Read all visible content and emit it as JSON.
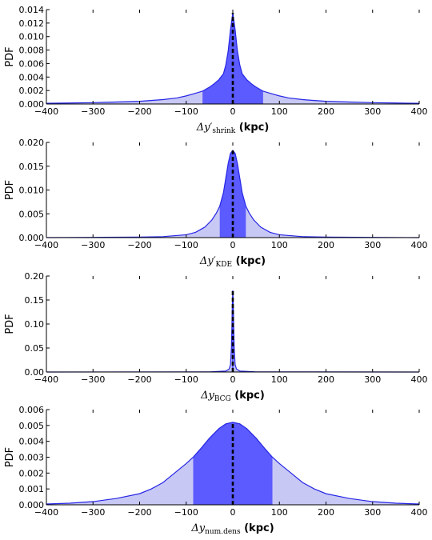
{
  "colors": {
    "fill_outer": "#c8c8f5",
    "fill_inner": "#5b5bff",
    "line": "#2626e6",
    "median": "#000000"
  },
  "chart_data": [
    {
      "type": "area",
      "ylabel": "PDF",
      "xlabel_main": "Δy′",
      "xlabel_sub": "shrink",
      "xlabel_unit": "(kpc)",
      "xlim": [
        -400,
        400
      ],
      "ylim": [
        0,
        0.014
      ],
      "x_ticks": [
        -400,
        -300,
        -200,
        -100,
        0,
        100,
        200,
        300,
        400
      ],
      "y_ticks": [
        "0.000",
        "0.002",
        "0.004",
        "0.006",
        "0.008",
        "0.010",
        "0.012",
        "0.014"
      ],
      "median": 0,
      "inner_band": [
        -65,
        65
      ],
      "curve": {
        "x": [
          -400,
          -350,
          -300,
          -250,
          -200,
          -150,
          -120,
          -100,
          -80,
          -65,
          -50,
          -40,
          -30,
          -20,
          -15,
          -10,
          -5,
          0,
          5,
          10,
          15,
          20,
          30,
          40,
          50,
          65,
          80,
          100,
          120,
          150,
          200,
          250,
          300,
          350,
          400
        ],
        "y": [
          0.0001,
          0.00015,
          0.0002,
          0.0003,
          0.0004,
          0.00065,
          0.0009,
          0.0012,
          0.0016,
          0.0019,
          0.0025,
          0.003,
          0.0036,
          0.0045,
          0.0058,
          0.0078,
          0.011,
          0.0135,
          0.011,
          0.0078,
          0.0058,
          0.0045,
          0.0036,
          0.003,
          0.0025,
          0.0019,
          0.0016,
          0.0012,
          0.0009,
          0.00065,
          0.0004,
          0.0003,
          0.0002,
          0.00015,
          0.0001
        ]
      }
    },
    {
      "type": "area",
      "ylabel": "PDF",
      "xlabel_main": "Δy′",
      "xlabel_sub": "KDE",
      "xlabel_unit": "(kpc)",
      "xlim": [
        -400,
        400
      ],
      "ylim": [
        0,
        0.02
      ],
      "x_ticks": [
        -400,
        -300,
        -200,
        -100,
        0,
        100,
        200,
        300,
        400
      ],
      "y_ticks": [
        "0.000",
        "0.005",
        "0.010",
        "0.015",
        "0.020"
      ],
      "median": 0,
      "inner_band": [
        -28,
        28
      ],
      "curve": {
        "x": [
          -400,
          -300,
          -200,
          -150,
          -100,
          -80,
          -60,
          -45,
          -35,
          -28,
          -20,
          -15,
          -10,
          -5,
          0,
          5,
          10,
          15,
          20,
          28,
          35,
          45,
          60,
          80,
          100,
          150,
          200,
          300,
          400
        ],
        "y": [
          0.0,
          5e-05,
          0.0001,
          0.0002,
          0.0006,
          0.0011,
          0.0022,
          0.0037,
          0.0052,
          0.0066,
          0.0095,
          0.0125,
          0.0155,
          0.0177,
          0.0183,
          0.0177,
          0.0155,
          0.0125,
          0.0095,
          0.0066,
          0.0052,
          0.0037,
          0.0022,
          0.0011,
          0.0006,
          0.0002,
          0.0001,
          5e-05,
          0.0
        ]
      }
    },
    {
      "type": "area",
      "ylabel": "PDF",
      "xlabel_main": "Δy",
      "xlabel_sub": "BCG",
      "xlabel_unit": "(kpc)",
      "xlim": [
        -400,
        400
      ],
      "ylim": [
        0,
        0.2
      ],
      "x_ticks": [
        -400,
        -300,
        -200,
        -100,
        0,
        100,
        200,
        300,
        400
      ],
      "y_ticks": [
        "0.00",
        "0.05",
        "0.10",
        "0.15",
        "0.20"
      ],
      "median": 0,
      "inner_band": [
        -2,
        2
      ],
      "curve": {
        "x": [
          -400,
          -50,
          -15,
          -8,
          -5,
          -3,
          -2,
          -1,
          0,
          1,
          2,
          3,
          5,
          8,
          15,
          50,
          400
        ],
        "y": [
          0.0,
          0.0003,
          0.002,
          0.006,
          0.015,
          0.05,
          0.09,
          0.14,
          0.17,
          0.14,
          0.09,
          0.05,
          0.015,
          0.006,
          0.002,
          0.0003,
          0.0
        ]
      }
    },
    {
      "type": "area",
      "ylabel": "PDF",
      "xlabel_main": "Δy",
      "xlabel_sub": "num.dens",
      "xlabel_unit": "(kpc)",
      "xlim": [
        -400,
        400
      ],
      "ylim": [
        0,
        0.006
      ],
      "x_ticks": [
        -400,
        -300,
        -200,
        -100,
        0,
        100,
        200,
        300,
        400
      ],
      "y_ticks": [
        "0.000",
        "0.001",
        "0.002",
        "0.003",
        "0.004",
        "0.005",
        "0.006"
      ],
      "median": 0,
      "inner_band": [
        -85,
        85
      ],
      "curve": {
        "x": [
          -400,
          -350,
          -300,
          -250,
          -200,
          -175,
          -150,
          -125,
          -100,
          -85,
          -70,
          -50,
          -30,
          -15,
          0,
          15,
          30,
          50,
          70,
          85,
          100,
          125,
          150,
          175,
          200,
          250,
          300,
          350,
          400
        ],
        "y": [
          5e-05,
          0.0001,
          0.0002,
          0.0004,
          0.0007,
          0.001,
          0.0014,
          0.002,
          0.0026,
          0.003,
          0.0035,
          0.0042,
          0.0048,
          0.0051,
          0.0052,
          0.0051,
          0.0048,
          0.0042,
          0.0035,
          0.003,
          0.0026,
          0.002,
          0.0014,
          0.001,
          0.0007,
          0.0004,
          0.0002,
          0.0001,
          5e-05
        ]
      }
    }
  ]
}
